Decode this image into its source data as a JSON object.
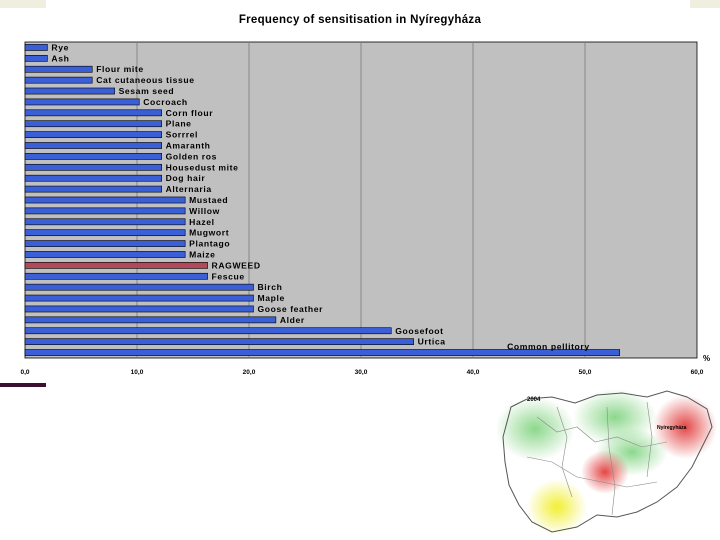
{
  "chart_data": {
    "type": "bar",
    "orientation": "horizontal",
    "title": "Frequency of sensitisation in Nyíregyháza",
    "xunit": "%",
    "xlim": [
      0,
      60
    ],
    "xticks": [
      "0,0",
      "10,0",
      "20,0",
      "30,0",
      "40,0",
      "50,0",
      "60,0"
    ],
    "grid": true,
    "categories": [
      "Rye",
      "Ash",
      "Flour mite",
      "Cat cutaneous tissue",
      "Sesam seed",
      "Cocroach",
      "Corn flour",
      "Plane",
      "Sorrrel",
      "Amaranth",
      "Golden ros",
      "Housedust mite",
      "Dog hair",
      "Alternaria",
      "Mustaed",
      "Willow",
      "Hazel",
      "Mugwort",
      "Plantago",
      "Maize",
      "RAGWEED",
      "Fescue",
      "Birch",
      "Maple",
      "Goose feather",
      "Alder",
      "Goosefoot",
      "Urtica",
      "Common pellitory"
    ],
    "values": [
      2,
      2,
      6,
      6,
      8,
      10.2,
      12.2,
      12.2,
      12.2,
      12.2,
      12.2,
      12.2,
      12.2,
      12.2,
      14.3,
      14.3,
      14.3,
      14.3,
      14.3,
      14.3,
      16.3,
      16.3,
      20.4,
      20.4,
      20.4,
      22.4,
      32.7,
      34.7,
      53.1
    ],
    "highlight": "RAGWEED",
    "colors": {
      "bar": "#3a5fd6",
      "highlight": "#b04a5a",
      "plot_bg": "#c0c0c0",
      "bar_edge": "#000000"
    }
  },
  "map": {
    "year": "2004",
    "label_highlight": "Nyíregyháza"
  }
}
